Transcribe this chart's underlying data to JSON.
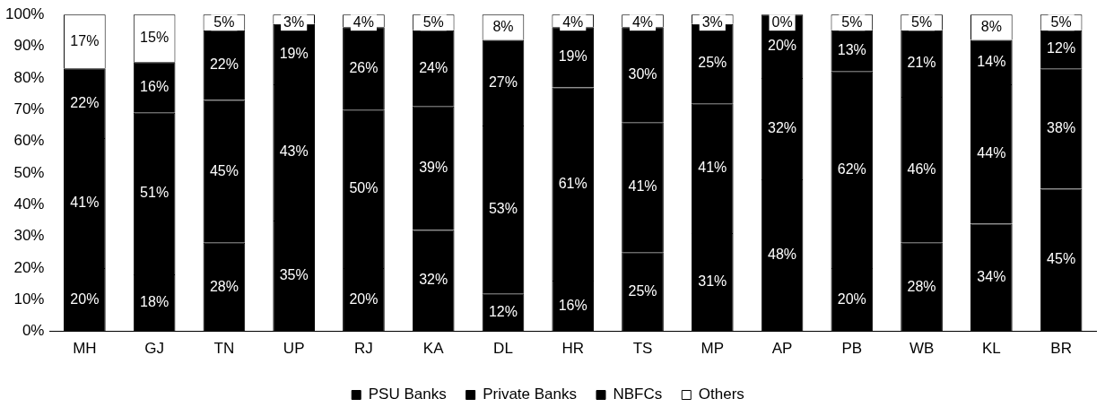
{
  "chart_data": {
    "type": "bar",
    "stacked": true,
    "legend": "bottom",
    "grid": false,
    "categories": [
      "MH",
      "GJ",
      "TN",
      "UP",
      "RJ",
      "KA",
      "DL",
      "HR",
      "TS",
      "MP",
      "AP",
      "PB",
      "WB",
      "KL",
      "BR"
    ],
    "ylim": [
      0,
      100
    ],
    "yticks": [
      {
        "value": 0,
        "label": "0%"
      },
      {
        "value": 10,
        "label": "10%"
      },
      {
        "value": 20,
        "label": "20%"
      },
      {
        "value": 30,
        "label": "30%"
      },
      {
        "value": 40,
        "label": "40%"
      },
      {
        "value": 50,
        "label": "50%"
      },
      {
        "value": 60,
        "label": "60%"
      },
      {
        "value": 70,
        "label": "70%"
      },
      {
        "value": 80,
        "label": "80%"
      },
      {
        "value": 90,
        "label": "90%"
      },
      {
        "value": 100,
        "label": "100%"
      }
    ],
    "series": [
      {
        "name": "PSU Banks",
        "color": "#000000",
        "values": [
          20,
          18,
          28,
          35,
          20,
          32,
          12,
          16,
          25,
          31,
          48,
          20,
          28,
          34,
          45
        ],
        "value_labels": [
          "20%",
          "18%",
          "28%",
          "35%",
          "20%",
          "32%",
          "12%",
          "16%",
          "25%",
          "31%",
          "48%",
          "20%",
          "28%",
          "34%",
          "45%"
        ]
      },
      {
        "name": "Private Banks",
        "color": "#000000",
        "values": [
          41,
          51,
          45,
          43,
          50,
          39,
          53,
          61,
          41,
          41,
          32,
          62,
          46,
          44,
          38
        ],
        "value_labels": [
          "41%",
          "51%",
          "45%",
          "43%",
          "50%",
          "39%",
          "53%",
          "61%",
          "41%",
          "41%",
          "32%",
          "62%",
          "46%",
          "44%",
          "38%"
        ]
      },
      {
        "name": "NBFCs",
        "color": "#000000",
        "values": [
          22,
          16,
          22,
          19,
          26,
          24,
          27,
          19,
          30,
          25,
          20,
          13,
          21,
          14,
          12
        ],
        "value_labels": [
          "22%",
          "16%",
          "22%",
          "19%",
          "26%",
          "24%",
          "27%",
          "19%",
          "30%",
          "25%",
          "20%",
          "13%",
          "21%",
          "14%",
          "12%"
        ]
      },
      {
        "name": "Others",
        "color": "#ffffff",
        "values": [
          17,
          15,
          5,
          3,
          4,
          5,
          8,
          4,
          4,
          3,
          0,
          5,
          5,
          8,
          5
        ],
        "value_labels": [
          "17%",
          "15%",
          "5%",
          "3%",
          "4%",
          "5%",
          "8%",
          "4%",
          "4%",
          "3%",
          "0%",
          "5%",
          "5%",
          "8%",
          "5%"
        ]
      }
    ]
  }
}
